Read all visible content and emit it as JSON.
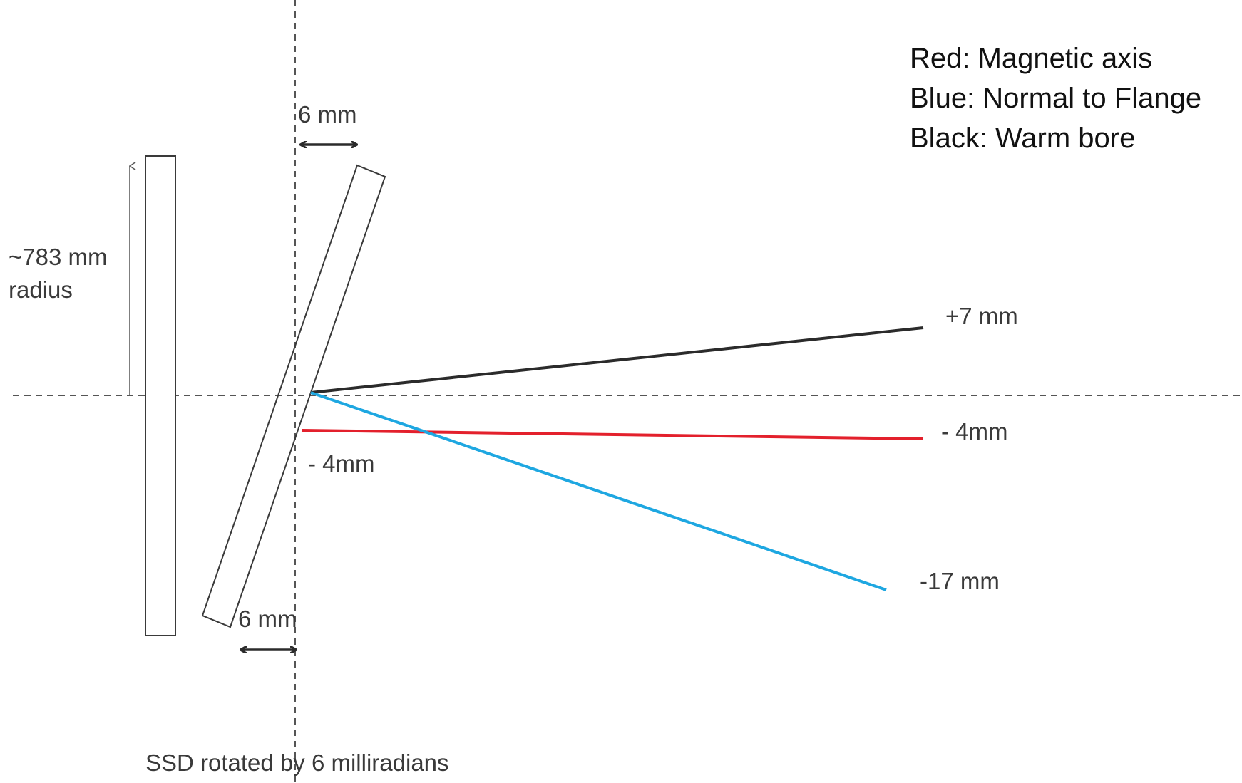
{
  "legend": {
    "red": "Red: Magnetic axis",
    "blue": "Blue: Normal to Flange",
    "black": "Black: Warm bore"
  },
  "labels": {
    "gap_top": "6 mm",
    "gap_bottom": "6 mm",
    "radius_line1": "~783 mm",
    "radius_line2": "radius",
    "black_end": "+7 mm",
    "red_end": "- 4mm",
    "red_start": "- 4mm",
    "blue_end": "-17 mm",
    "caption": "SSD rotated by 6 milliradians"
  },
  "colors": {
    "red": "#e3202c",
    "blue": "#1ea7e1",
    "black": "#2b2b2b",
    "guide": "#555555",
    "outline": "#3a3a3a"
  }
}
